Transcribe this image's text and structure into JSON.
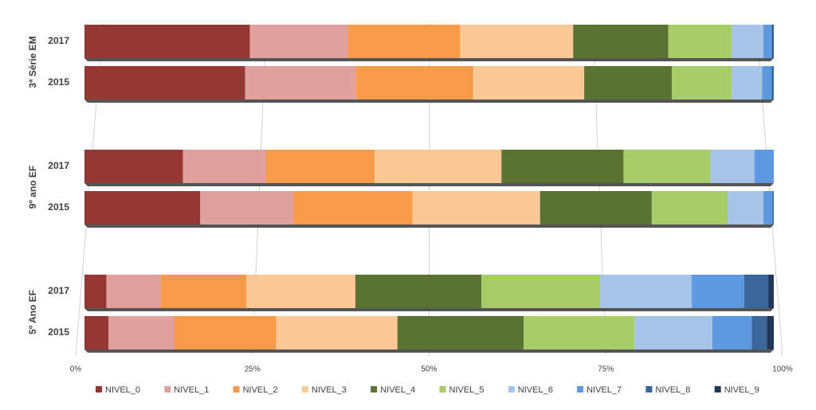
{
  "chart_data": {
    "type": "stacked-bar-horizontal",
    "groups": [
      "3ª Série EM",
      "9º ano EF",
      "5º Ano EF"
    ],
    "categories": [
      "2017",
      "2015",
      "2017",
      "2015",
      "2017",
      "2015"
    ],
    "xlim": [
      0,
      100
    ],
    "xticks": [
      {
        "value": 0,
        "label": "0%"
      },
      {
        "value": 25,
        "label": "25%"
      },
      {
        "value": 50,
        "label": "50%"
      },
      {
        "value": 75,
        "label": "75%"
      },
      {
        "value": 100,
        "label": "100%"
      }
    ],
    "grid": true,
    "legend": "bottom",
    "series": [
      {
        "name": "NIVEL_0",
        "color": "#953735",
        "values": [
          24.0,
          23.3,
          14.3,
          16.8,
          3.2,
          3.5
        ]
      },
      {
        "name": "NIVEL_1",
        "color": "#e0a09e",
        "values": [
          14.2,
          16.1,
          12.0,
          13.5,
          7.9,
          9.5
        ]
      },
      {
        "name": "NIVEL_2",
        "color": "#f79a4a",
        "values": [
          16.3,
          17.0,
          15.8,
          17.3,
          12.4,
          14.8
        ]
      },
      {
        "name": "NIVEL_3",
        "color": "#fcc896",
        "values": [
          16.4,
          16.1,
          18.4,
          18.5,
          15.8,
          17.6
        ]
      },
      {
        "name": "NIVEL_4",
        "color": "#5a7232",
        "values": [
          13.8,
          12.7,
          17.7,
          16.2,
          18.3,
          18.3
        ]
      },
      {
        "name": "NIVEL_5",
        "color": "#a6cd6a",
        "values": [
          9.2,
          8.7,
          12.6,
          11.0,
          17.2,
          16.1
        ]
      },
      {
        "name": "NIVEL_6",
        "color": "#a7c3e8",
        "values": [
          4.6,
          4.4,
          6.4,
          5.2,
          13.3,
          11.3
        ]
      },
      {
        "name": "NIVEL_7",
        "color": "#5e98e0",
        "values": [
          1.2,
          1.4,
          2.8,
          1.3,
          7.6,
          5.7
        ]
      },
      {
        "name": "NIVEL_8",
        "color": "#3b669c",
        "values": [
          0.2,
          0.3,
          0,
          0.2,
          3.5,
          2.2
        ]
      },
      {
        "name": "NIVEL_9",
        "color": "#1f3859",
        "values": [
          0.1,
          0,
          0,
          0,
          0.8,
          1.0
        ]
      }
    ]
  }
}
